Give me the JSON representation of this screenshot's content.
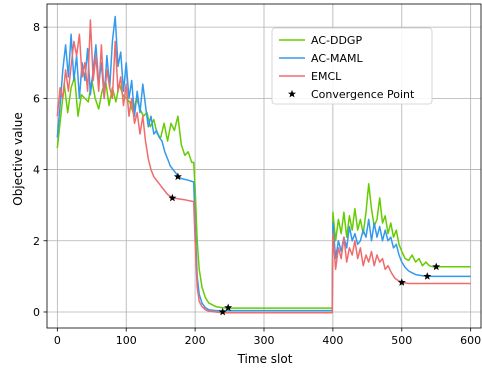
{
  "chart_data": {
    "type": "line",
    "title": "",
    "xlabel": "Time slot",
    "ylabel": "Objective value",
    "xlim": [
      -15,
      615
    ],
    "ylim": [
      -0.45,
      8.65
    ],
    "xticks": [
      0,
      100,
      200,
      300,
      400,
      500,
      600
    ],
    "yticks": [
      0,
      2,
      4,
      6,
      8
    ],
    "grid": true,
    "legend_position": "upper-center",
    "series": [
      {
        "name": "AC-DDGP",
        "color": "#66cc00",
        "points": [
          [
            0,
            4.6
          ],
          [
            5,
            5.5
          ],
          [
            10,
            6.4
          ],
          [
            15,
            5.6
          ],
          [
            20,
            6.3
          ],
          [
            25,
            6.6
          ],
          [
            30,
            5.5
          ],
          [
            35,
            6.1
          ],
          [
            40,
            6.0
          ],
          [
            45,
            5.9
          ],
          [
            50,
            6.5
          ],
          [
            55,
            6.0
          ],
          [
            60,
            5.7
          ],
          [
            65,
            6.2
          ],
          [
            70,
            6.5
          ],
          [
            75,
            5.8
          ],
          [
            80,
            6.3
          ],
          [
            85,
            5.9
          ],
          [
            90,
            6.4
          ],
          [
            95,
            6.1
          ],
          [
            100,
            6.0
          ],
          [
            105,
            5.9
          ],
          [
            110,
            5.6
          ],
          [
            115,
            6.0
          ],
          [
            120,
            5.7
          ],
          [
            125,
            5.5
          ],
          [
            130,
            5.6
          ],
          [
            135,
            5.2
          ],
          [
            140,
            5.4
          ],
          [
            145,
            5.0
          ],
          [
            150,
            4.9
          ],
          [
            155,
            5.3
          ],
          [
            160,
            4.8
          ],
          [
            165,
            5.3
          ],
          [
            170,
            5.1
          ],
          [
            175,
            5.5
          ],
          [
            180,
            4.7
          ],
          [
            185,
            4.4
          ],
          [
            190,
            4.5
          ],
          [
            195,
            4.2
          ],
          [
            198,
            4.2
          ],
          [
            200,
            3.5
          ],
          [
            203,
            2.0
          ],
          [
            206,
            1.2
          ],
          [
            210,
            0.7
          ],
          [
            215,
            0.4
          ],
          [
            220,
            0.25
          ],
          [
            230,
            0.15
          ],
          [
            240,
            0.12
          ],
          [
            250,
            0.11
          ],
          [
            300,
            0.11
          ],
          [
            350,
            0.11
          ],
          [
            399,
            0.11
          ],
          [
            400,
            2.8
          ],
          [
            404,
            2.0
          ],
          [
            408,
            2.6
          ],
          [
            412,
            2.2
          ],
          [
            416,
            2.8
          ],
          [
            420,
            2.1
          ],
          [
            424,
            2.7
          ],
          [
            428,
            2.3
          ],
          [
            432,
            2.9
          ],
          [
            436,
            2.3
          ],
          [
            440,
            2.6
          ],
          [
            444,
            2.2
          ],
          [
            448,
            2.8
          ],
          [
            452,
            3.6
          ],
          [
            456,
            2.9
          ],
          [
            460,
            2.4
          ],
          [
            464,
            2.6
          ],
          [
            468,
            3.2
          ],
          [
            472,
            2.5
          ],
          [
            476,
            2.7
          ],
          [
            480,
            2.2
          ],
          [
            484,
            2.5
          ],
          [
            488,
            2.1
          ],
          [
            492,
            2.3
          ],
          [
            496,
            1.9
          ],
          [
            500,
            1.7
          ],
          [
            505,
            1.5
          ],
          [
            510,
            1.45
          ],
          [
            515,
            1.6
          ],
          [
            520,
            1.4
          ],
          [
            525,
            1.5
          ],
          [
            530,
            1.3
          ],
          [
            535,
            1.4
          ],
          [
            540,
            1.3
          ],
          [
            545,
            1.27
          ],
          [
            550,
            1.27
          ],
          [
            600,
            1.27
          ]
        ]
      },
      {
        "name": "AC-MAML",
        "color": "#3399ee",
        "points": [
          [
            0,
            4.9
          ],
          [
            4,
            5.8
          ],
          [
            8,
            6.8
          ],
          [
            12,
            7.5
          ],
          [
            16,
            6.6
          ],
          [
            20,
            7.8
          ],
          [
            24,
            6.5
          ],
          [
            28,
            7.2
          ],
          [
            32,
            6.0
          ],
          [
            36,
            7.0
          ],
          [
            40,
            6.5
          ],
          [
            44,
            7.4
          ],
          [
            48,
            6.1
          ],
          [
            52,
            6.8
          ],
          [
            56,
            7.5
          ],
          [
            60,
            6.4
          ],
          [
            64,
            7.0
          ],
          [
            68,
            6.0
          ],
          [
            72,
            7.2
          ],
          [
            76,
            6.3
          ],
          [
            80,
            7.6
          ],
          [
            84,
            8.3
          ],
          [
            88,
            6.9
          ],
          [
            92,
            7.3
          ],
          [
            96,
            6.2
          ],
          [
            100,
            7.0
          ],
          [
            104,
            6.0
          ],
          [
            108,
            6.5
          ],
          [
            112,
            5.5
          ],
          [
            116,
            6.2
          ],
          [
            120,
            5.6
          ],
          [
            124,
            6.4
          ],
          [
            128,
            5.8
          ],
          [
            132,
            5.2
          ],
          [
            136,
            5.5
          ],
          [
            140,
            5.0
          ],
          [
            144,
            5.1
          ],
          [
            148,
            4.9
          ],
          [
            152,
            4.8
          ],
          [
            156,
            4.5
          ],
          [
            160,
            4.3
          ],
          [
            164,
            4.1
          ],
          [
            168,
            4.0
          ],
          [
            172,
            3.9
          ],
          [
            176,
            3.8
          ],
          [
            180,
            3.75
          ],
          [
            190,
            3.7
          ],
          [
            198,
            3.65
          ],
          [
            200,
            2.5
          ],
          [
            203,
            1.0
          ],
          [
            206,
            0.5
          ],
          [
            210,
            0.25
          ],
          [
            215,
            0.12
          ],
          [
            220,
            0.06
          ],
          [
            230,
            0.04
          ],
          [
            240,
            0.04
          ],
          [
            300,
            0.04
          ],
          [
            350,
            0.04
          ],
          [
            399,
            0.04
          ],
          [
            400,
            2.5
          ],
          [
            404,
            1.5
          ],
          [
            408,
            2.0
          ],
          [
            412,
            1.7
          ],
          [
            416,
            2.1
          ],
          [
            420,
            1.8
          ],
          [
            424,
            2.4
          ],
          [
            428,
            2.0
          ],
          [
            432,
            2.2
          ],
          [
            436,
            1.9
          ],
          [
            440,
            2.0
          ],
          [
            444,
            2.3
          ],
          [
            448,
            2.1
          ],
          [
            452,
            2.6
          ],
          [
            456,
            2.0
          ],
          [
            460,
            2.5
          ],
          [
            464,
            2.1
          ],
          [
            468,
            2.4
          ],
          [
            472,
            2.0
          ],
          [
            476,
            2.3
          ],
          [
            480,
            2.0
          ],
          [
            484,
            2.1
          ],
          [
            488,
            1.8
          ],
          [
            492,
            1.9
          ],
          [
            496,
            1.6
          ],
          [
            500,
            1.4
          ],
          [
            505,
            1.25
          ],
          [
            510,
            1.15
          ],
          [
            515,
            1.1
          ],
          [
            520,
            1.05
          ],
          [
            530,
            1.02
          ],
          [
            540,
            1.0
          ],
          [
            600,
            1.0
          ]
        ]
      },
      {
        "name": "EMCL",
        "color": "#f06b6b",
        "points": [
          [
            0,
            5.5
          ],
          [
            4,
            6.3
          ],
          [
            8,
            6.0
          ],
          [
            12,
            6.8
          ],
          [
            16,
            6.2
          ],
          [
            20,
            6.9
          ],
          [
            24,
            7.6
          ],
          [
            28,
            7.2
          ],
          [
            32,
            7.8
          ],
          [
            36,
            6.6
          ],
          [
            40,
            7.0
          ],
          [
            44,
            6.2
          ],
          [
            48,
            8.2
          ],
          [
            52,
            6.5
          ],
          [
            56,
            7.2
          ],
          [
            60,
            6.2
          ],
          [
            64,
            7.5
          ],
          [
            68,
            6.0
          ],
          [
            72,
            6.8
          ],
          [
            76,
            6.3
          ],
          [
            80,
            6.0
          ],
          [
            84,
            7.6
          ],
          [
            88,
            6.2
          ],
          [
            92,
            6.6
          ],
          [
            96,
            5.8
          ],
          [
            100,
            6.4
          ],
          [
            104,
            5.5
          ],
          [
            108,
            6.0
          ],
          [
            112,
            5.3
          ],
          [
            116,
            5.6
          ],
          [
            120,
            5.0
          ],
          [
            124,
            5.5
          ],
          [
            128,
            4.8
          ],
          [
            132,
            4.3
          ],
          [
            136,
            4.0
          ],
          [
            140,
            3.8
          ],
          [
            144,
            3.7
          ],
          [
            148,
            3.6
          ],
          [
            152,
            3.5
          ],
          [
            156,
            3.4
          ],
          [
            160,
            3.3
          ],
          [
            164,
            3.25
          ],
          [
            168,
            3.2
          ],
          [
            175,
            3.18
          ],
          [
            185,
            3.15
          ],
          [
            198,
            3.1
          ],
          [
            200,
            2.0
          ],
          [
            203,
            0.7
          ],
          [
            206,
            0.3
          ],
          [
            210,
            0.15
          ],
          [
            215,
            0.06
          ],
          [
            220,
            0.02
          ],
          [
            230,
            0.0
          ],
          [
            240,
            -0.02
          ],
          [
            300,
            -0.02
          ],
          [
            350,
            -0.02
          ],
          [
            399,
            -0.02
          ],
          [
            400,
            2.2
          ],
          [
            404,
            1.2
          ],
          [
            408,
            1.8
          ],
          [
            412,
            1.5
          ],
          [
            416,
            2.1
          ],
          [
            420,
            1.4
          ],
          [
            424,
            1.8
          ],
          [
            428,
            1.6
          ],
          [
            432,
            2.0
          ],
          [
            436,
            1.5
          ],
          [
            440,
            1.8
          ],
          [
            444,
            1.3
          ],
          [
            448,
            1.6
          ],
          [
            452,
            1.4
          ],
          [
            456,
            1.7
          ],
          [
            460,
            1.3
          ],
          [
            464,
            1.6
          ],
          [
            468,
            1.4
          ],
          [
            472,
            1.5
          ],
          [
            476,
            1.2
          ],
          [
            480,
            1.3
          ],
          [
            485,
            1.1
          ],
          [
            490,
            0.95
          ],
          [
            495,
            0.88
          ],
          [
            500,
            0.83
          ],
          [
            510,
            0.8
          ],
          [
            520,
            0.8
          ],
          [
            600,
            0.8
          ]
        ]
      }
    ],
    "convergence": {
      "name": "Convergence Point",
      "points": [
        [
          167,
          3.2
        ],
        [
          175,
          3.8
        ],
        [
          240,
          0.0
        ],
        [
          248,
          0.12
        ],
        [
          500,
          0.83
        ],
        [
          537,
          1.0
        ],
        [
          550,
          1.27
        ]
      ]
    }
  }
}
